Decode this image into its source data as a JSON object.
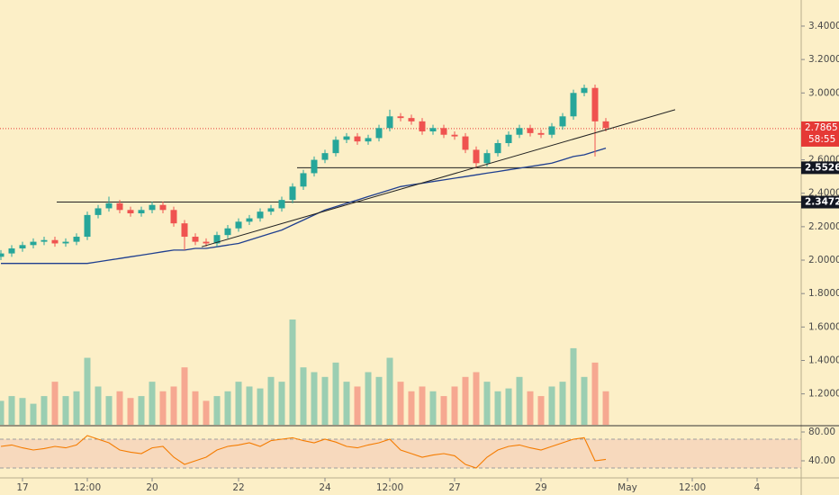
{
  "chart_data": {
    "type": "candlestick",
    "x": [
      -12,
      -6,
      0,
      6,
      12,
      18,
      24,
      30,
      36,
      42,
      48,
      54,
      60,
      66,
      72,
      78,
      84,
      90,
      96,
      102,
      108,
      114,
      120,
      126,
      132,
      138,
      144,
      150,
      156,
      162,
      168,
      174,
      180,
      186,
      192,
      198,
      204,
      210,
      216,
      222,
      228,
      234,
      240,
      246,
      252,
      258,
      264,
      270,
      276,
      282,
      288,
      294,
      300,
      306,
      312,
      318,
      324
    ],
    "open": [
      2.02,
      2.04,
      2.07,
      2.09,
      2.11,
      2.12,
      2.1,
      2.11,
      2.14,
      2.27,
      2.31,
      2.34,
      2.3,
      2.28,
      2.3,
      2.33,
      2.3,
      2.22,
      2.14,
      2.11,
      2.1,
      2.15,
      2.19,
      2.23,
      2.25,
      2.29,
      2.31,
      2.36,
      2.44,
      2.52,
      2.6,
      2.64,
      2.72,
      2.74,
      2.71,
      2.73,
      2.79,
      2.86,
      2.85,
      2.83,
      2.77,
      2.79,
      2.75,
      2.74,
      2.66,
      2.58,
      2.64,
      2.7,
      2.75,
      2.79,
      2.76,
      2.75,
      2.8,
      2.86,
      3.0,
      3.03,
      2.83
    ],
    "high": [
      2.06,
      2.09,
      2.11,
      2.13,
      2.14,
      2.14,
      2.13,
      2.16,
      2.29,
      2.33,
      2.38,
      2.36,
      2.32,
      2.32,
      2.35,
      2.35,
      2.32,
      2.24,
      2.16,
      2.13,
      2.17,
      2.21,
      2.25,
      2.27,
      2.31,
      2.33,
      2.38,
      2.46,
      2.54,
      2.62,
      2.66,
      2.74,
      2.76,
      2.76,
      2.75,
      2.81,
      2.9,
      2.88,
      2.87,
      2.85,
      2.81,
      2.81,
      2.77,
      2.76,
      2.68,
      2.66,
      2.72,
      2.77,
      2.81,
      2.81,
      2.78,
      2.82,
      2.88,
      3.02,
      3.05,
      3.05,
      2.85
    ],
    "low": [
      2.0,
      2.02,
      2.05,
      2.07,
      2.09,
      2.08,
      2.08,
      2.09,
      2.12,
      2.25,
      2.29,
      2.28,
      2.26,
      2.26,
      2.28,
      2.28,
      2.2,
      2.06,
      2.09,
      2.08,
      2.08,
      2.13,
      2.17,
      2.21,
      2.23,
      2.27,
      2.29,
      2.34,
      2.42,
      2.5,
      2.58,
      2.62,
      2.7,
      2.69,
      2.69,
      2.71,
      2.77,
      2.83,
      2.81,
      2.75,
      2.75,
      2.73,
      2.72,
      2.64,
      2.55,
      2.56,
      2.62,
      2.68,
      2.73,
      2.74,
      2.73,
      2.73,
      2.78,
      2.84,
      2.98,
      2.62,
      2.77
    ],
    "close": [
      2.04,
      2.07,
      2.09,
      2.11,
      2.12,
      2.1,
      2.11,
      2.14,
      2.27,
      2.31,
      2.34,
      2.3,
      2.28,
      2.3,
      2.33,
      2.3,
      2.22,
      2.14,
      2.11,
      2.1,
      2.15,
      2.19,
      2.23,
      2.25,
      2.29,
      2.31,
      2.36,
      2.44,
      2.52,
      2.6,
      2.64,
      2.72,
      2.74,
      2.71,
      2.73,
      2.79,
      2.86,
      2.85,
      2.83,
      2.77,
      2.79,
      2.75,
      2.74,
      2.66,
      2.58,
      2.64,
      2.7,
      2.75,
      2.79,
      2.76,
      2.75,
      2.8,
      2.86,
      3.0,
      3.03,
      2.83,
      2.79
    ],
    "up_color": "#26a69a",
    "down_color": "#ef5350",
    "xlim": [
      -12.5,
      432.5
    ],
    "xticks": [
      {
        "value": 0,
        "label": "17"
      },
      {
        "value": 36,
        "label": "12:00"
      },
      {
        "value": 72,
        "label": "20"
      },
      {
        "value": 120,
        "label": "22"
      },
      {
        "value": 168,
        "label": "24"
      },
      {
        "value": 204,
        "label": "12:00"
      },
      {
        "value": 240,
        "label": "27"
      },
      {
        "value": 288,
        "label": "29"
      },
      {
        "value": 336,
        "label": "May"
      },
      {
        "value": 372,
        "label": "12:00"
      },
      {
        "value": 408,
        "label": "4"
      }
    ],
    "ylim": [
      1.015,
      3.556
    ],
    "yticks": [
      {
        "value": 1.2,
        "label": "1.2000"
      },
      {
        "value": 1.4,
        "label": "1.4000"
      },
      {
        "value": 1.6,
        "label": "1.6000"
      },
      {
        "value": 1.8,
        "label": "1.8000"
      },
      {
        "value": 2.0,
        "label": "2.0000"
      },
      {
        "value": 2.2,
        "label": "2.2000"
      },
      {
        "value": 2.4,
        "label": "2.4000"
      },
      {
        "value": 2.6,
        "label": "2.6000"
      },
      {
        "value": 2.8,
        "label": "2.8000"
      },
      {
        "value": 3.0,
        "label": "3.0000"
      },
      {
        "value": 3.2,
        "label": "3.2000"
      },
      {
        "value": 3.4,
        "label": "3.4000"
      }
    ],
    "moving_average": {
      "color": "#1f3f8f",
      "values": [
        1.98,
        1.98,
        1.98,
        1.98,
        1.98,
        1.98,
        1.98,
        1.98,
        1.98,
        1.99,
        2.0,
        2.01,
        2.02,
        2.03,
        2.04,
        2.05,
        2.06,
        2.06,
        2.07,
        2.07,
        2.08,
        2.09,
        2.1,
        2.12,
        2.14,
        2.16,
        2.18,
        2.21,
        2.24,
        2.27,
        2.3,
        2.32,
        2.34,
        2.36,
        2.38,
        2.4,
        2.42,
        2.44,
        2.45,
        2.46,
        2.47,
        2.48,
        2.49,
        2.5,
        2.51,
        2.52,
        2.53,
        2.54,
        2.55,
        2.56,
        2.57,
        2.58,
        2.6,
        2.62,
        2.63,
        2.65,
        2.67
      ]
    },
    "volume": {
      "values": [
        25,
        30,
        28,
        22,
        30,
        45,
        30,
        35,
        70,
        40,
        30,
        35,
        28,
        30,
        45,
        35,
        40,
        60,
        35,
        25,
        30,
        35,
        45,
        40,
        38,
        50,
        45,
        110,
        60,
        55,
        50,
        65,
        45,
        40,
        55,
        50,
        70,
        45,
        35,
        40,
        35,
        30,
        40,
        50,
        55,
        45,
        35,
        38,
        50,
        35,
        30,
        40,
        45,
        80,
        50,
        65,
        35
      ]
    },
    "rsi": {
      "color": "#f57c00",
      "band": [
        30,
        70
      ],
      "ylim": [
        17.5,
        87.5
      ],
      "yticks": [
        {
          "value": 40,
          "label": "40.00"
        },
        {
          "value": 80,
          "label": "80.00"
        }
      ],
      "values": [
        60,
        62,
        58,
        55,
        57,
        60,
        58,
        62,
        75,
        70,
        65,
        55,
        52,
        50,
        58,
        60,
        45,
        35,
        40,
        45,
        55,
        60,
        62,
        65,
        60,
        68,
        70,
        72,
        68,
        65,
        70,
        66,
        60,
        58,
        62,
        65,
        70,
        55,
        50,
        45,
        48,
        50,
        47,
        35,
        30,
        45,
        55,
        60,
        62,
        58,
        55,
        60,
        65,
        70,
        72,
        40,
        42
      ]
    },
    "levels": [
      {
        "value": 2.5526,
        "from": 152.5
      },
      {
        "value": 2.3472,
        "from": 19
      }
    ],
    "trendline": {
      "x": [
        99.5,
        362.5
      ],
      "y": [
        2.08,
        2.9
      ]
    },
    "last_price": 2.7865,
    "last_price_color": "#e53935",
    "countdown": "58:55"
  }
}
